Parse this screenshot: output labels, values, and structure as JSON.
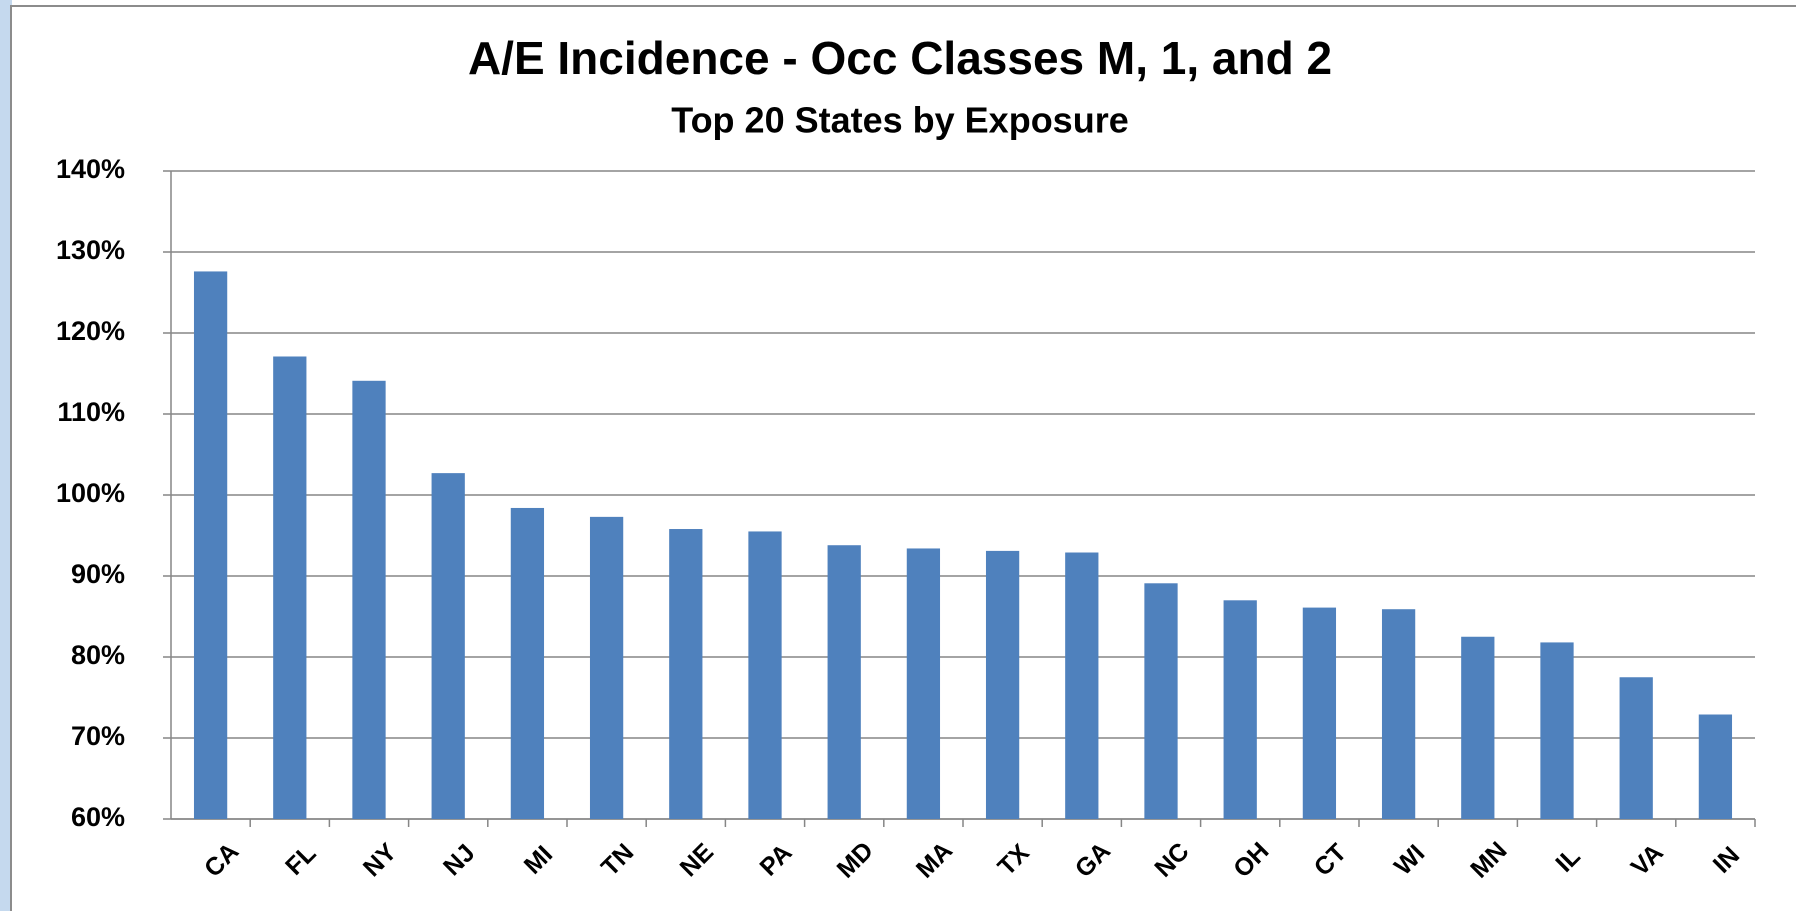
{
  "chart_data": {
    "type": "bar",
    "title": "A/E Incidence - Occ Classes M, 1, and 2",
    "subtitle": "Top 20 States by Exposure",
    "categories": [
      "CA",
      "FL",
      "NY",
      "NJ",
      "MI",
      "TN",
      "NE",
      "PA",
      "MD",
      "MA",
      "TX",
      "GA",
      "NC",
      "OH",
      "CT",
      "WI",
      "MN",
      "IL",
      "VA",
      "IN"
    ],
    "values": [
      127.6,
      117.1,
      114.1,
      102.7,
      98.4,
      97.3,
      95.8,
      95.5,
      93.8,
      93.4,
      93.1,
      92.9,
      89.1,
      87.0,
      86.1,
      85.9,
      82.5,
      81.8,
      77.5,
      72.9
    ],
    "color": "#4f81bd",
    "ylim": [
      60,
      140
    ],
    "yticks": [
      {
        "value": 60,
        "label": "60%"
      },
      {
        "value": 70,
        "label": "70%"
      },
      {
        "value": 80,
        "label": "80%"
      },
      {
        "value": 90,
        "label": "90%"
      },
      {
        "value": 100,
        "label": "100%"
      },
      {
        "value": 110,
        "label": "110%"
      },
      {
        "value": 120,
        "label": "120%"
      },
      {
        "value": 130,
        "label": "130%"
      },
      {
        "value": 140,
        "label": "140%"
      }
    ],
    "grid": true
  }
}
